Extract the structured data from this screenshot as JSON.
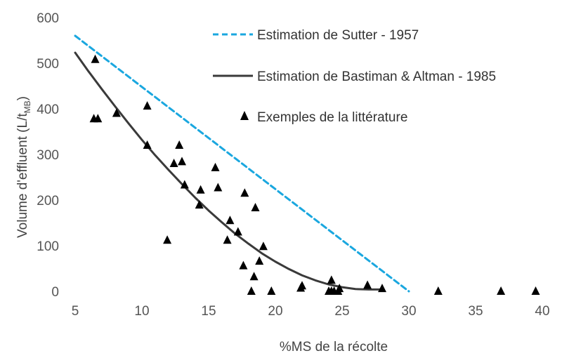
{
  "chart_data": {
    "type": "scatter",
    "title": "",
    "xlabel": "%MS de la récolte",
    "ylabel": "Volume d'effluent (L/t",
    "ylabel_subscript": "MB",
    "ylabel_suffix": ")",
    "xlim": [
      5,
      40
    ],
    "ylim": [
      0,
      600
    ],
    "xticks": [
      5,
      10,
      15,
      20,
      25,
      30,
      35,
      40
    ],
    "yticks": [
      0,
      100,
      200,
      300,
      400,
      500,
      600
    ],
    "grid": false,
    "legend_position": "top-right",
    "series": [
      {
        "name": "Estimation de Sutter - 1957",
        "kind": "line",
        "style": "dashed",
        "color": "#1aa7df",
        "x": [
          5,
          30
        ],
        "y": [
          560,
          0
        ]
      },
      {
        "name": "Estimation de Bastiman & Altman - 1985",
        "kind": "line",
        "style": "solid",
        "color": "#3a3a3a",
        "x": [
          5,
          6,
          7,
          8,
          9,
          10,
          11,
          12,
          13,
          14,
          15,
          16,
          17,
          18,
          19,
          20,
          21,
          22,
          23,
          24,
          25,
          26,
          27,
          28
        ],
        "y": [
          523,
          482,
          443,
          405,
          368,
          332,
          298,
          266,
          235,
          205,
          177,
          151,
          126,
          104,
          83,
          65,
          49,
          35,
          24,
          15,
          9,
          5,
          4,
          4
        ]
      },
      {
        "name": "Exemples de la littérature",
        "kind": "scatter",
        "marker": "triangle",
        "color": "#000000",
        "x": [
          6.4,
          6.5,
          6.7,
          8.1,
          10.4,
          10.4,
          11.9,
          12.4,
          12.8,
          13.0,
          13.2,
          14.3,
          14.4,
          15.5,
          15.7,
          16.4,
          16.6,
          17.2,
          17.6,
          17.7,
          18.2,
          18.4,
          18.5,
          18.8,
          19.1,
          19.7,
          21.9,
          22.0,
          24.0,
          24.2,
          24.2,
          24.4,
          24.7,
          24.8,
          26.9,
          28.0,
          32.2,
          36.9,
          39.5
        ],
        "y": [
          378,
          508,
          378,
          390,
          406,
          320,
          112,
          280,
          320,
          284,
          233,
          189,
          222,
          271,
          227,
          112,
          155,
          130,
          56,
          215,
          0,
          32,
          183,
          66,
          98,
          0,
          7,
          12,
          0,
          24,
          0,
          0,
          0,
          6,
          13,
          6,
          0,
          0,
          0
        ]
      }
    ]
  }
}
